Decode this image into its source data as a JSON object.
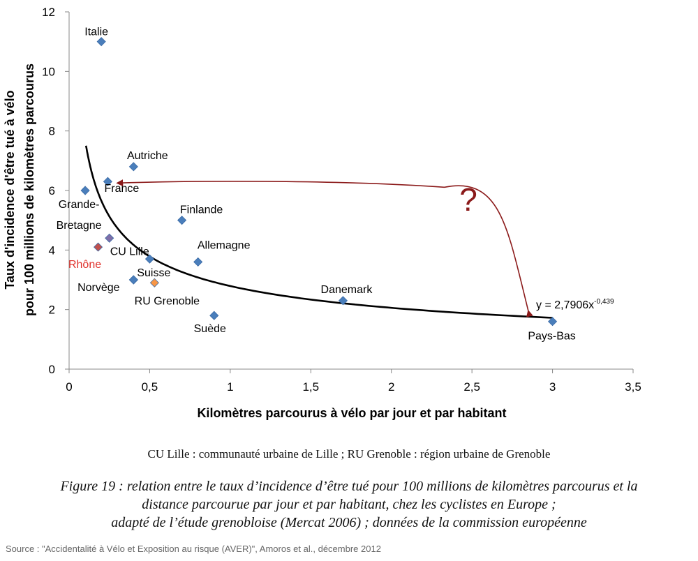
{
  "chart_data": {
    "type": "scatter",
    "xlabel": "Kilomètres parcourus à vélo par jour et par habitant",
    "ylabel_line1": "Taux d'incidence d'être tué  à vélo",
    "ylabel_line2": "pour 100  millions de kilomètres parcourus",
    "xlim": [
      0,
      3.5
    ],
    "ylim": [
      0,
      12
    ],
    "x_ticks": [
      "0",
      "0,5",
      "1",
      "1,5",
      "2",
      "2,5",
      "3",
      "3,5"
    ],
    "y_ticks": [
      "0",
      "2",
      "4",
      "6",
      "8",
      "10",
      "12"
    ],
    "grid": false,
    "points": [
      {
        "label": "Italie",
        "x": 0.2,
        "y": 11.0,
        "color": "#4a7ebb"
      },
      {
        "label": "Autriche",
        "x": 0.4,
        "y": 6.8,
        "color": "#4a7ebb"
      },
      {
        "label": "France",
        "x": 0.24,
        "y": 6.3,
        "color": "#4a7ebb"
      },
      {
        "label": "Grande-\nBretagne",
        "x": 0.1,
        "y": 6.0,
        "color": "#4a7ebb"
      },
      {
        "label": "Finlande",
        "x": 0.7,
        "y": 5.0,
        "color": "#4a7ebb"
      },
      {
        "label": "CU Lille",
        "x": 0.25,
        "y": 4.4,
        "color": "#7f6fa8"
      },
      {
        "label": "Rhône",
        "x": 0.18,
        "y": 4.1,
        "color": "#c0504d"
      },
      {
        "label": "",
        "x": 0.5,
        "y": 3.7,
        "color": "#4a7ebb"
      },
      {
        "label": "Allemagne",
        "x": 0.8,
        "y": 3.6,
        "color": "#4a7ebb"
      },
      {
        "label": "Suisse",
        "x": 0.4,
        "y": 3.0,
        "color": "#4a7ebb"
      },
      {
        "label": "Norvège",
        "x": 0.4,
        "y": 3.0,
        "color": "#4a7ebb"
      },
      {
        "label": "RU Grenoble",
        "x": 0.53,
        "y": 2.9,
        "color": "#f79646"
      },
      {
        "label": "Danemark",
        "x": 1.7,
        "y": 2.3,
        "color": "#4a7ebb"
      },
      {
        "label": "Suède",
        "x": 0.9,
        "y": 1.8,
        "color": "#4a7ebb"
      },
      {
        "label": "Pays-Bas",
        "x": 3.0,
        "y": 1.6,
        "color": "#4a7ebb"
      }
    ],
    "trendline": {
      "type": "power",
      "a": 2.7906,
      "b": -0.439,
      "x_range": [
        0.105,
        3.0
      ],
      "equation_base": "y = 2,7906x",
      "equation_exp": "-0,439"
    },
    "annotation": {
      "text": "?",
      "arrow_color": "#8b1a1a",
      "from": {
        "x": 2.85,
        "y": 1.95
      },
      "to": {
        "x": 0.3,
        "y": 6.25
      }
    }
  },
  "caption": {
    "note": "CU Lille : communauté urbaine de Lille ; RU Grenoble : région urbaine de Grenoble",
    "figure_line1": "Figure 19 : relation entre le taux d’incidence d’être tué pour 100 millions de kilomètres parcourus et la",
    "figure_line2": "distance parcourue par jour et par habitant, chez les cyclistes en Europe ;",
    "figure_line3": "adapté de l’étude grenobloise (Mercat 2006) ; données de la commission européenne",
    "source": "Source : \"Accidentalité à Vélo et Exposition au risque (AVER)\", Amoros et al., décembre 2012"
  }
}
